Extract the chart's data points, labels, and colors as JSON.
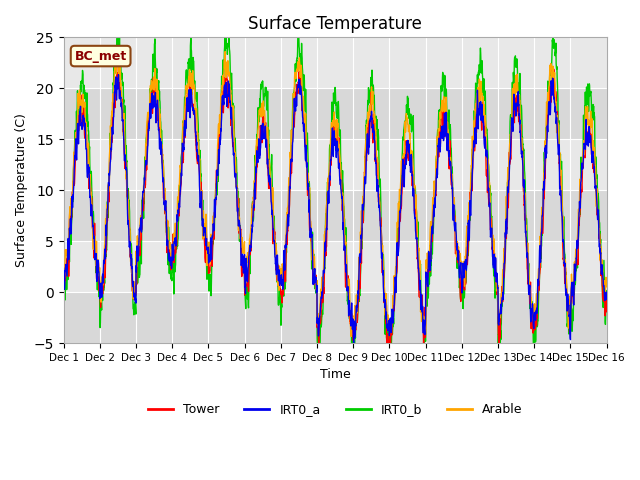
{
  "title": "Surface Temperature",
  "xlabel": "Time",
  "ylabel": "Surface Temperature (C)",
  "ylim": [
    -5,
    25
  ],
  "xlim": [
    0,
    15
  ],
  "xtick_labels": [
    "Dec 1",
    "Dec 2",
    "Dec 3",
    "Dec 4",
    "Dec 5",
    "Dec 6",
    "Dec 7",
    "Dec 8",
    "Dec 9",
    "Dec 10",
    "Dec 11",
    "Dec 12",
    "Dec 13",
    "Dec 14",
    "Dec 15",
    "Dec 16"
  ],
  "annotation": "BC_met",
  "colors": {
    "Tower": "#ff0000",
    "IRT0_a": "#0000ee",
    "IRT0_b": "#00cc00",
    "Arable": "#ffa500"
  },
  "bg_color": "#e8e8e8",
  "band_color": "#d4d4d4",
  "fig_color": "#ffffff",
  "linewidth": 1.0,
  "legend_entries": [
    "Tower",
    "IRT0_a",
    "IRT0_b",
    "Arable"
  ],
  "peak_amps": [
    17.5,
    21.0,
    19.5,
    19.5,
    20.5,
    16.5,
    20.5,
    15.5,
    17.0,
    14.5,
    17.0,
    18.5,
    19.0,
    20.5,
    16.0
  ],
  "trough_vals": [
    1.0,
    -1.0,
    2.5,
    3.5,
    2.5,
    0.5,
    0.0,
    -4.0,
    -4.5,
    -4.0,
    1.0,
    0.5,
    -3.5,
    -3.0,
    -1.0
  ]
}
